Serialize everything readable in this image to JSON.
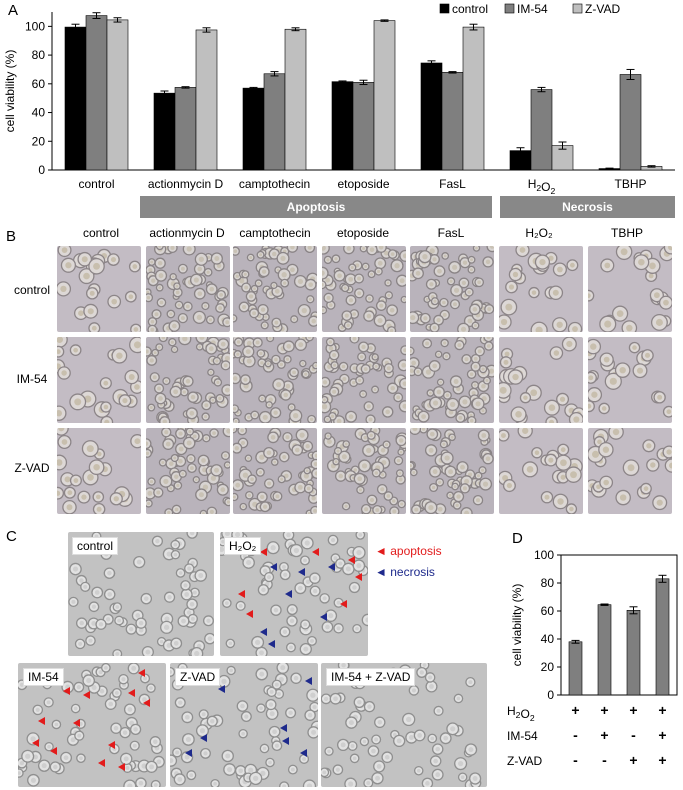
{
  "panels": {
    "a": "A",
    "b": "B",
    "c": "C",
    "d": "D"
  },
  "colors": {
    "control": "#000000",
    "im54": "#7f7f7f",
    "zvad": "#bfbfbf",
    "apoptosis": "#e21b1b",
    "necrosis": "#1e2a8c",
    "group_bar": "#888888"
  },
  "chart_data": [
    {
      "id": "A",
      "type": "bar",
      "ylabel": "cell viability (%)",
      "ylim": [
        0,
        110
      ],
      "yticks": [
        0,
        20,
        40,
        60,
        80,
        100
      ],
      "categories": [
        "control",
        "actionmycin D",
        "camptothecin",
        "etoposide",
        "FasL",
        "H₂O₂",
        "TBHP"
      ],
      "series": [
        {
          "name": "control",
          "values": [
            99.5,
            53.5,
            57,
            61.5,
            74.5,
            13.5,
            1
          ],
          "errors": [
            2,
            1.5,
            0.5,
            0.5,
            1.5,
            2,
            0.3
          ]
        },
        {
          "name": "IM-54",
          "values": [
            107.5,
            57.5,
            67,
            61,
            68,
            56,
            66.5
          ],
          "errors": [
            2,
            0.5,
            1.5,
            1.5,
            0.5,
            1.5,
            3.5
          ]
        },
        {
          "name": "Z-VAD",
          "values": [
            104.5,
            97.5,
            98,
            104,
            99.5,
            17,
            2.5
          ],
          "errors": [
            1.5,
            1.5,
            1,
            0.5,
            2,
            2.5,
            0.5
          ]
        }
      ],
      "groups": [
        {
          "label": "Apoptosis",
          "from": 1,
          "to": 4
        },
        {
          "label": "Necrosis",
          "from": 5,
          "to": 6
        }
      ]
    },
    {
      "id": "D",
      "type": "bar",
      "ylabel": "cell viability (%)",
      "ylim": [
        0,
        100
      ],
      "yticks": [
        0,
        20,
        40,
        60,
        80,
        100
      ],
      "categories": [
        "1",
        "2",
        "3",
        "4"
      ],
      "values": [
        38,
        64.5,
        60.5,
        83
      ],
      "errors": [
        1,
        0.5,
        2.5,
        2.5
      ],
      "table": {
        "rows": [
          {
            "label": "H₂O₂",
            "marks": [
              "+",
              "+",
              "+",
              "+"
            ]
          },
          {
            "label": "IM-54",
            "marks": [
              "-",
              "+",
              "-",
              "+"
            ]
          },
          {
            "label": "Z-VAD",
            "marks": [
              "-",
              "-",
              "+",
              "+"
            ]
          }
        ]
      }
    }
  ],
  "panel_b": {
    "columns": [
      "control",
      "actionmycin D",
      "camptothecin",
      "etoposide",
      "FasL",
      "H₂O₂",
      "TBHP"
    ],
    "rows": [
      "control",
      "IM-54",
      "Z-VAD"
    ]
  },
  "panel_c": {
    "images": [
      "control",
      "H₂O₂",
      "IM-54",
      "Z-VAD",
      "IM-54 + Z-VAD"
    ],
    "legend": [
      {
        "label": "apoptosis"
      },
      {
        "label": "necrosis"
      }
    ]
  }
}
